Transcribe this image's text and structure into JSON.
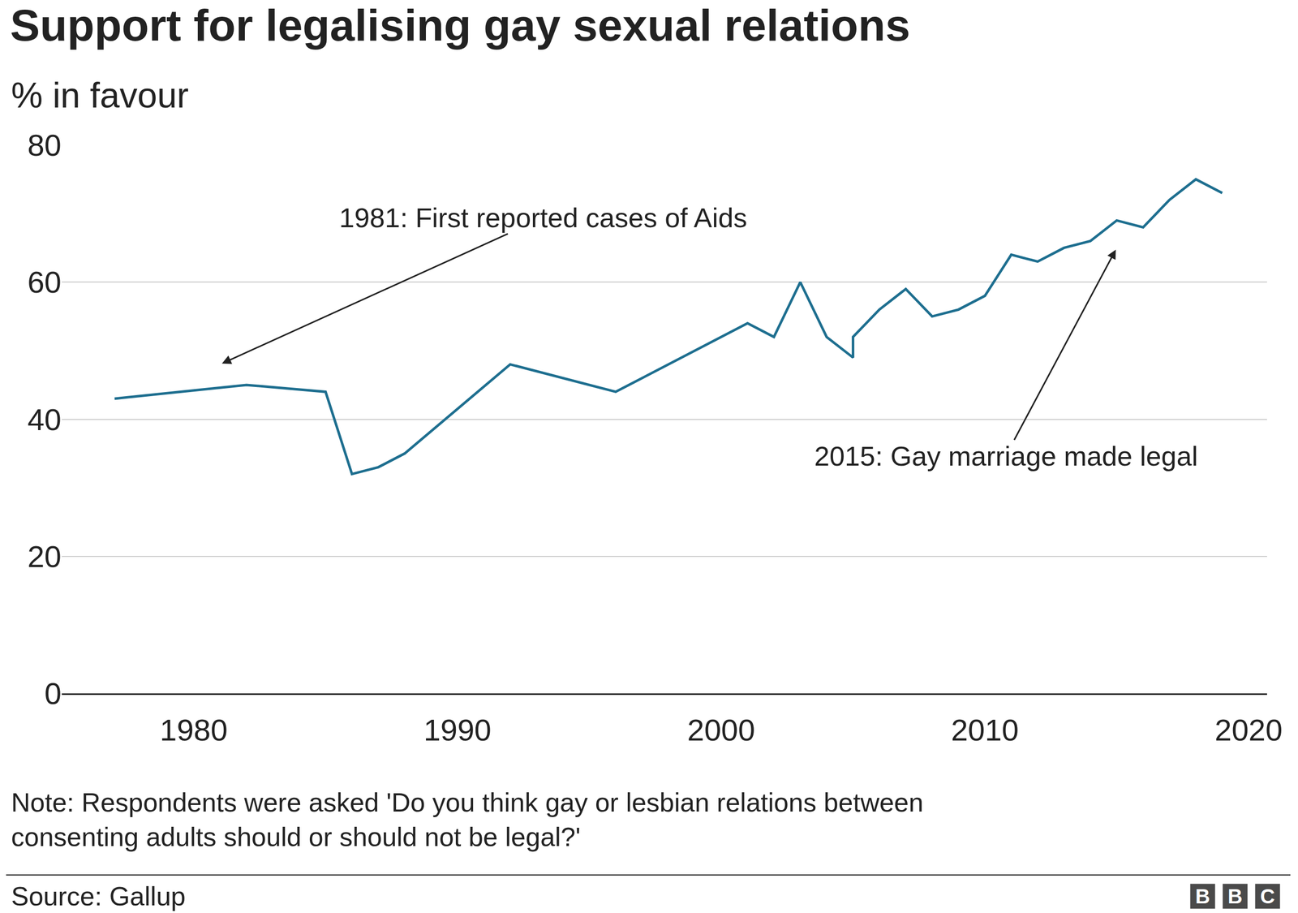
{
  "chart_data": {
    "type": "line",
    "title": "Support for legalising gay sexual relations",
    "subtitle": "% in favour",
    "x": [
      1977,
      1982,
      1985,
      1986,
      1987,
      1988,
      1992,
      1996,
      2001,
      2002,
      2003,
      2004,
      2005,
      2005,
      2006,
      2007,
      2008,
      2009,
      2010,
      2011,
      2012,
      2013,
      2014,
      2015,
      2016,
      2017,
      2018,
      2019
    ],
    "values": [
      43,
      45,
      44,
      32,
      33,
      35,
      48,
      44,
      54,
      52,
      60,
      52,
      49,
      52,
      56,
      59,
      55,
      56,
      58,
      64,
      63,
      65,
      66,
      69,
      68,
      72,
      75,
      73
    ],
    "color": "#1d6e8f",
    "xlim": [
      1975,
      2020.7
    ],
    "xticks": [
      1980,
      1990,
      2000,
      2010,
      2020
    ],
    "ylim": [
      0,
      80
    ],
    "yticks": [
      0,
      20,
      40,
      60,
      80
    ],
    "grid": true,
    "annotations": [
      {
        "text": "1981: First reported cases of Aids",
        "x": 1981,
        "y": 48
      },
      {
        "text": "2015: Gay marriage made legal",
        "x": 2015,
        "y": 65
      }
    ],
    "note": "Note: Respondents were asked 'Do you think gay or lesbian relations between consenting adults should or should not be legal?'",
    "source": "Source: Gallup",
    "logo": "BBC"
  }
}
